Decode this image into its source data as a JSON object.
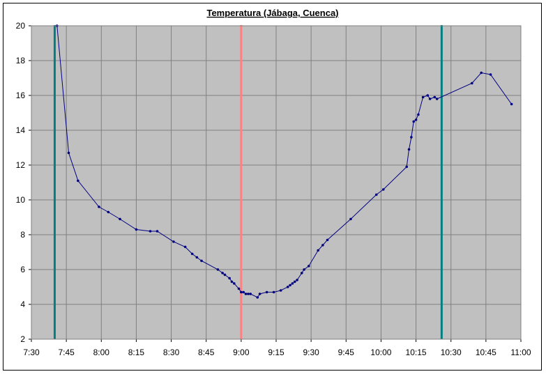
{
  "chart_data": {
    "type": "line",
    "title": "Temperatura (Jábaga, Cuenca)",
    "xlabel": "",
    "ylabel": "",
    "x_range": [
      "7:30",
      "11:00"
    ],
    "ylim": [
      2,
      20
    ],
    "y_ticks": [
      "2",
      "4",
      "6",
      "8",
      "10",
      "12",
      "14",
      "16",
      "18",
      "20"
    ],
    "x_ticks": [
      "7:30",
      "7:45",
      "8:00",
      "8:15",
      "8:30",
      "8:45",
      "9:00",
      "9:15",
      "9:30",
      "9:45",
      "10:00",
      "10:15",
      "10:30",
      "10:45",
      "11:00"
    ],
    "grid": true,
    "plot_background": "#c0c0c0",
    "series": [
      {
        "color": "#000080",
        "x": [
          "7:41",
          "7:46",
          "7:50",
          "7:59",
          "8:03",
          "8:08",
          "8:15",
          "8:21",
          "8:24",
          "8:31",
          "8:36",
          "8:39",
          "8:41",
          "8:43",
          "8:50",
          "8:52",
          "8:53",
          "8:55",
          "8:56",
          "8:57",
          "8:59",
          "9:00",
          "9:01",
          "9:02",
          "9:03",
          "9:04",
          "9:07",
          "9:08",
          "9:11",
          "9:14",
          "9:17",
          "9:20",
          "9:21",
          "9:22",
          "9:23",
          "9:24",
          "9:26",
          "9:27",
          "9:29",
          "9:33",
          "9:35",
          "9:37",
          "9:47",
          "9:58",
          "10:01",
          "10:11",
          "10:12",
          "10:13",
          "10:14",
          "10:15",
          "10:16",
          "10:18",
          "10:20",
          "10:21",
          "10:23",
          "10:24",
          "10:39",
          "10:43",
          "10:47",
          "10:56"
        ],
        "y": [
          20.0,
          12.7,
          11.1,
          9.6,
          9.3,
          8.9,
          8.3,
          8.2,
          8.2,
          7.6,
          7.3,
          6.9,
          6.7,
          6.5,
          6.0,
          5.8,
          5.7,
          5.5,
          5.3,
          5.2,
          4.9,
          4.7,
          4.7,
          4.6,
          4.6,
          4.6,
          4.4,
          4.6,
          4.7,
          4.7,
          4.8,
          5.0,
          5.1,
          5.2,
          5.3,
          5.4,
          5.8,
          6.0,
          6.2,
          7.1,
          7.4,
          7.7,
          8.9,
          10.3,
          10.6,
          11.9,
          12.9,
          13.6,
          14.5,
          14.6,
          14.9,
          15.9,
          16.0,
          15.8,
          15.9,
          15.8,
          16.7,
          17.3,
          17.2,
          15.5
        ]
      }
    ],
    "vertical_markers": [
      {
        "x": "7:40",
        "color": "#008080"
      },
      {
        "x": "9:00",
        "color": "#ff8080"
      },
      {
        "x": "10:26",
        "color": "#008080"
      }
    ]
  }
}
